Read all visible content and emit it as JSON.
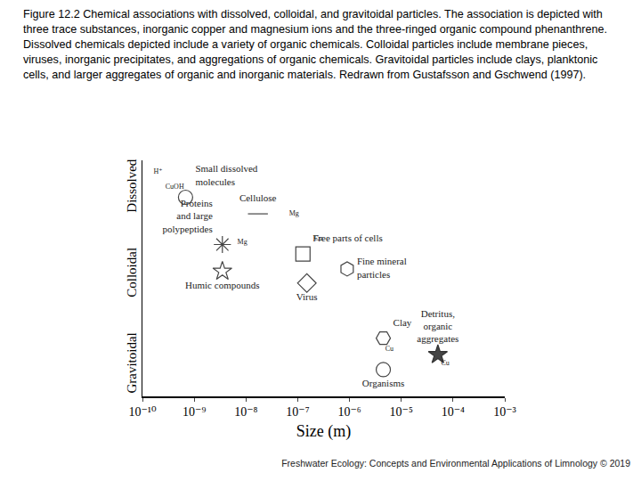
{
  "caption": "Figure 12.2 Chemical associations with dissolved, colloidal, and gravitoidal particles. The association is depicted with three trace substances, inorganic copper and magnesium ions and the three-ringed organic compound phenanthrene. Dissolved chemicals depicted include a variety of organic chemicals. Colloidal particles include membrane pieces, viruses, inorganic precipitates, and aggregations of organic chemicals. Gravitoidal particles include clays, planktonic cells, and larger aggregates of organic and inorganic materials. Redrawn from Gustafsson and Gschwend (1997).",
  "footer": "Freshwater Ecology: Concepts and Environmental Applications of Limnology © 2019",
  "chart_data": {
    "type": "scatter",
    "xlabel": "Size (m)",
    "log": "x",
    "grid": false,
    "xlim": [
      1e-10,
      0.001
    ],
    "xticks": [
      {
        "value": 1e-10,
        "label": "10⁻¹⁰"
      },
      {
        "value": 1e-09,
        "label": "10⁻⁹"
      },
      {
        "value": 1e-08,
        "label": "10⁻⁸"
      },
      {
        "value": 1e-07,
        "label": "10⁻⁷"
      },
      {
        "value": 1e-06,
        "label": "10⁻⁶"
      },
      {
        "value": 1e-05,
        "label": "10⁻⁵"
      },
      {
        "value": 0.0001,
        "label": "10⁻⁴"
      },
      {
        "value": 0.001,
        "label": "10⁻³"
      }
    ],
    "ylim": [
      0,
      3
    ],
    "yticks": [
      {
        "value": 0.4,
        "label": "Gravitoidal"
      },
      {
        "value": 1.55,
        "label": "Colloidal"
      },
      {
        "value": 2.65,
        "label": "Dissolved"
      }
    ],
    "items": [
      {
        "label": "Small dissolved\nmolecules",
        "x": 6.8e-10,
        "y": 2.53,
        "marker": "circle-open"
      },
      {
        "label": "Cellulose",
        "x": 1.7e-08,
        "y": 2.32,
        "marker": "line-ew-open"
      },
      {
        "label": "Proteins\nand large\npolypeptides",
        "x": 3.5e-09,
        "y": 1.93,
        "marker": "asterisk-open"
      },
      {
        "label": "Humic compounds",
        "x": 3.5e-09,
        "y": 1.59,
        "marker": "star-open"
      },
      {
        "label": "Free parts of cells",
        "x": 1.26e-07,
        "y": 1.81,
        "marker": "square-open"
      },
      {
        "label": "Virus",
        "x": 1.5e-07,
        "y": 1.44,
        "marker": "diamond-open"
      },
      {
        "label": "Fine mineral\nparticles",
        "x": 9e-07,
        "y": 1.62,
        "marker": "hexagon-open"
      },
      {
        "label": "Clay",
        "x": 4.5e-06,
        "y": 0.74,
        "marker": "hexagon2-open"
      },
      {
        "label": "Detritus,\norganic\naggregates",
        "x": 5.1e-05,
        "y": 0.53,
        "marker": "star"
      },
      {
        "label": "Organisms",
        "x": 4.5e-06,
        "y": 0.34,
        "marker": "circle-open"
      }
    ],
    "tags": [
      {
        "text": "H⁺",
        "x": 2e-10,
        "y": 2.85
      },
      {
        "text": "CuOH",
        "x": 4.2e-10,
        "y": 2.66
      },
      {
        "text": "Mg",
        "x": 8.5e-08,
        "y": 2.32
      },
      {
        "text": "Mg",
        "x": 8.5e-09,
        "y": 1.96
      },
      {
        "text": "Cu",
        "x": 2.5e-07,
        "y": 2.0
      },
      {
        "text": "Cu",
        "x": 5.9e-06,
        "y": 0.6
      },
      {
        "text": "Cu",
        "x": 7.1e-05,
        "y": 0.42
      }
    ]
  }
}
